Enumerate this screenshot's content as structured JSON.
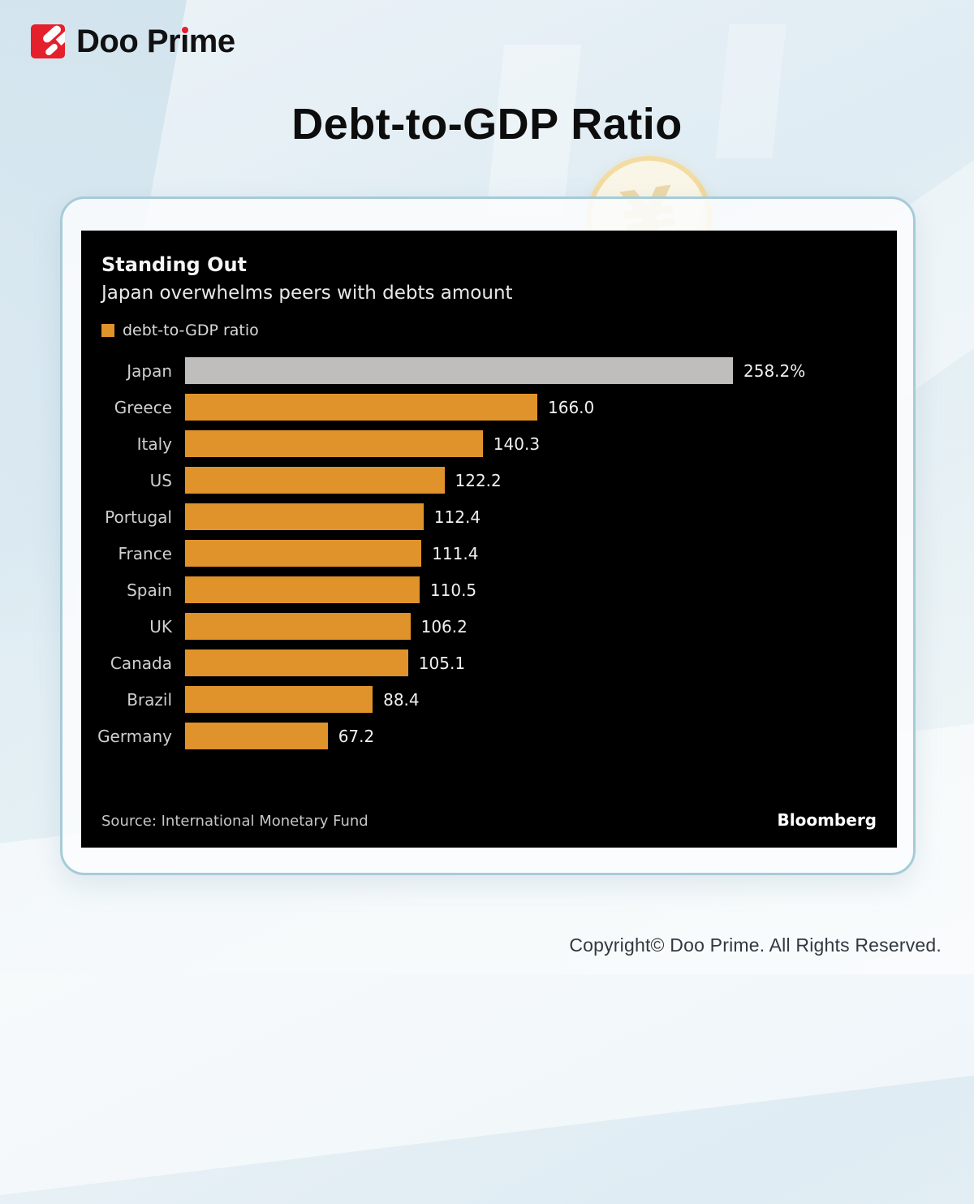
{
  "brand": {
    "logo_full": "Doo Prime",
    "logo": {
      "pre": "Doo Pr",
      "i_char": "ı",
      "post": "me"
    },
    "accent_red": "#E4202C"
  },
  "page": {
    "title": "Debt-to-GDP Ratio",
    "copyright": "Copyright© Doo Prime. All Rights Reserved."
  },
  "decor": {
    "coin_symbol": "¥"
  },
  "chart_data": {
    "type": "bar",
    "orientation": "horizontal",
    "title": "Standing Out",
    "subtitle": "Japan overwhelms peers with debts amount",
    "legend": [
      {
        "label": "debt-to-GDP ratio",
        "color": "#E0922B"
      }
    ],
    "legend_position": "top-left",
    "categories": [
      "Japan",
      "Greece",
      "Italy",
      "US",
      "Portugal",
      "France",
      "Spain",
      "UK",
      "Canada",
      "Brazil",
      "Germany"
    ],
    "values": [
      258.2,
      166.0,
      140.3,
      122.2,
      112.4,
      111.4,
      110.5,
      106.2,
      105.1,
      88.4,
      67.2
    ],
    "value_labels": [
      "258.2%",
      "166.0",
      "140.3",
      "122.2",
      "112.4",
      "111.4",
      "110.5",
      "106.2",
      "105.1",
      "88.4",
      "67.2"
    ],
    "bar_color": "#E0922B",
    "highlight": {
      "category": "Japan",
      "color": "#BFBEBC"
    },
    "xlim": [
      0,
      280
    ],
    "grid": false,
    "panel_background": "#000000",
    "source": "Source: International Monetary Fund",
    "brand": "Bloomberg"
  }
}
